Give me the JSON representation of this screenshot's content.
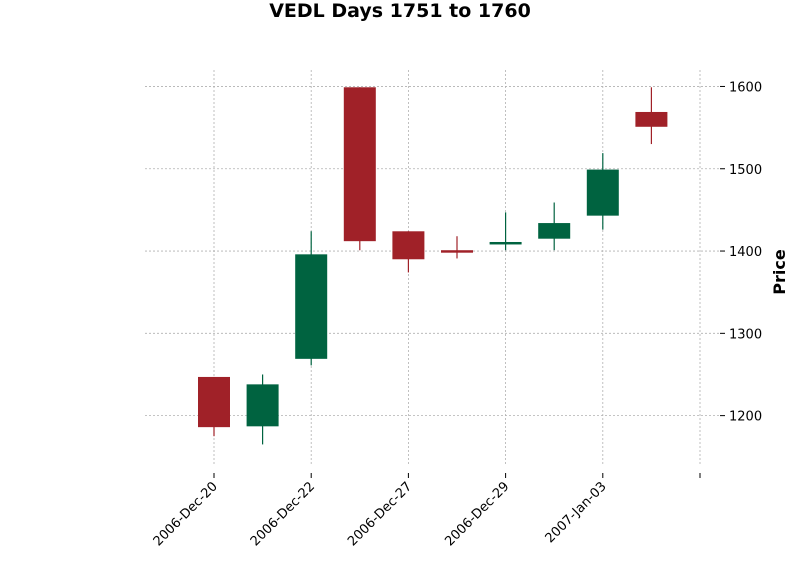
{
  "chart_data": {
    "type": "candlestick",
    "title": "VEDL Days 1751 to 1760",
    "xlabel": "",
    "ylabel": "Price",
    "ylim": [
      1140,
      1620
    ],
    "yticks": [
      1200,
      1300,
      1400,
      1500,
      1600
    ],
    "grid": true,
    "xtick_labels": [
      {
        "index": 0,
        "label": "2006-Dec-20"
      },
      {
        "index": 2,
        "label": "2006-Dec-22"
      },
      {
        "index": 4,
        "label": "2006-Dec-27"
      },
      {
        "index": 6,
        "label": "2006-Dec-29"
      },
      {
        "index": 8,
        "label": "2007-Jan-03"
      },
      {
        "index": 10,
        "label": ""
      }
    ],
    "candles": [
      {
        "open": 1247,
        "high": 1247,
        "low": 1175,
        "close": 1186
      },
      {
        "open": 1187,
        "high": 1250,
        "low": 1165,
        "close": 1238
      },
      {
        "open": 1269,
        "high": 1424,
        "low": 1261,
        "close": 1396
      },
      {
        "open": 1599,
        "high": 1599,
        "low": 1401,
        "close": 1412
      },
      {
        "open": 1424,
        "high": 1424,
        "low": 1374,
        "close": 1390
      },
      {
        "open": 1401,
        "high": 1418,
        "low": 1391,
        "close": 1398
      },
      {
        "open": 1408,
        "high": 1447,
        "low": 1401,
        "close": 1411
      },
      {
        "open": 1415,
        "high": 1459,
        "low": 1401,
        "close": 1434
      },
      {
        "open": 1443,
        "high": 1519,
        "low": 1426,
        "close": 1499
      },
      {
        "open": 1569,
        "high": 1599,
        "low": 1530,
        "close": 1551
      }
    ],
    "colors": {
      "up": "#006340",
      "down": "#a02128",
      "grid": "#b0b0b0"
    }
  }
}
